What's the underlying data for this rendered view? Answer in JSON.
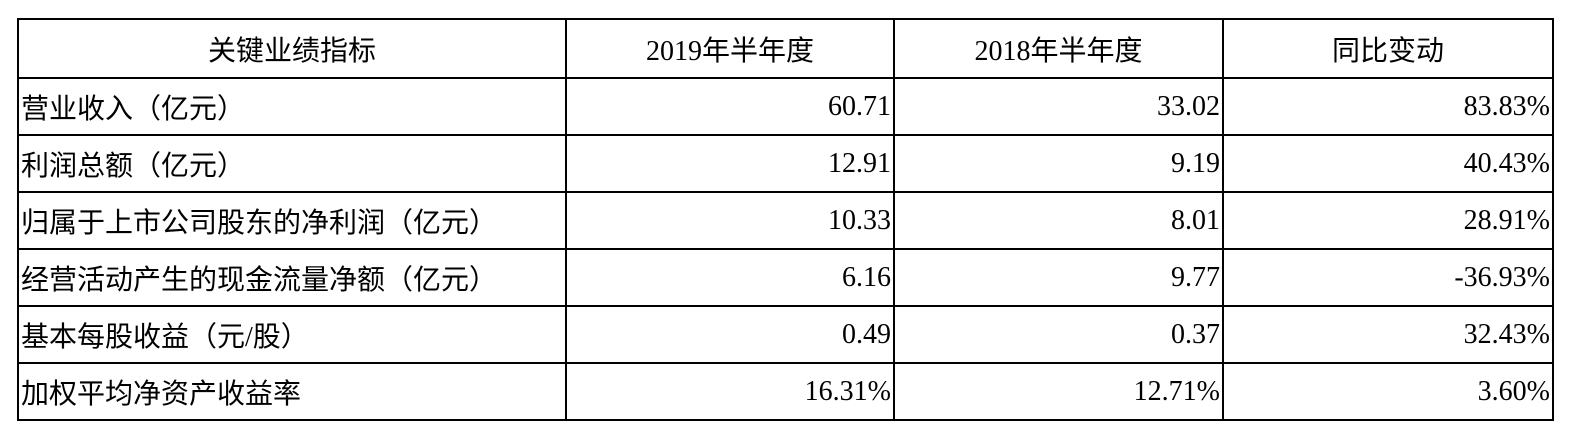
{
  "table": {
    "header": [
      "关键业绩指标",
      "2019年半年度",
      "2018年半年度",
      "同比变动"
    ],
    "rows": [
      [
        "营业收入（亿元）",
        "60.71",
        "33.02",
        "83.83%"
      ],
      [
        "利润总额（亿元）",
        "12.91",
        "9.19",
        "40.43%"
      ],
      [
        "归属于上市公司股东的净利润（亿元）",
        "10.33",
        "8.01",
        "28.91%"
      ],
      [
        "经营活动产生的现金流量净额（亿元）",
        "6.16",
        "9.77",
        "-36.93%"
      ],
      [
        "基本每股收益（元/股）",
        "0.49",
        "0.37",
        "32.43%"
      ],
      [
        "加权平均净资产收益率",
        "16.31%",
        "12.71%",
        "3.60%"
      ]
    ]
  }
}
